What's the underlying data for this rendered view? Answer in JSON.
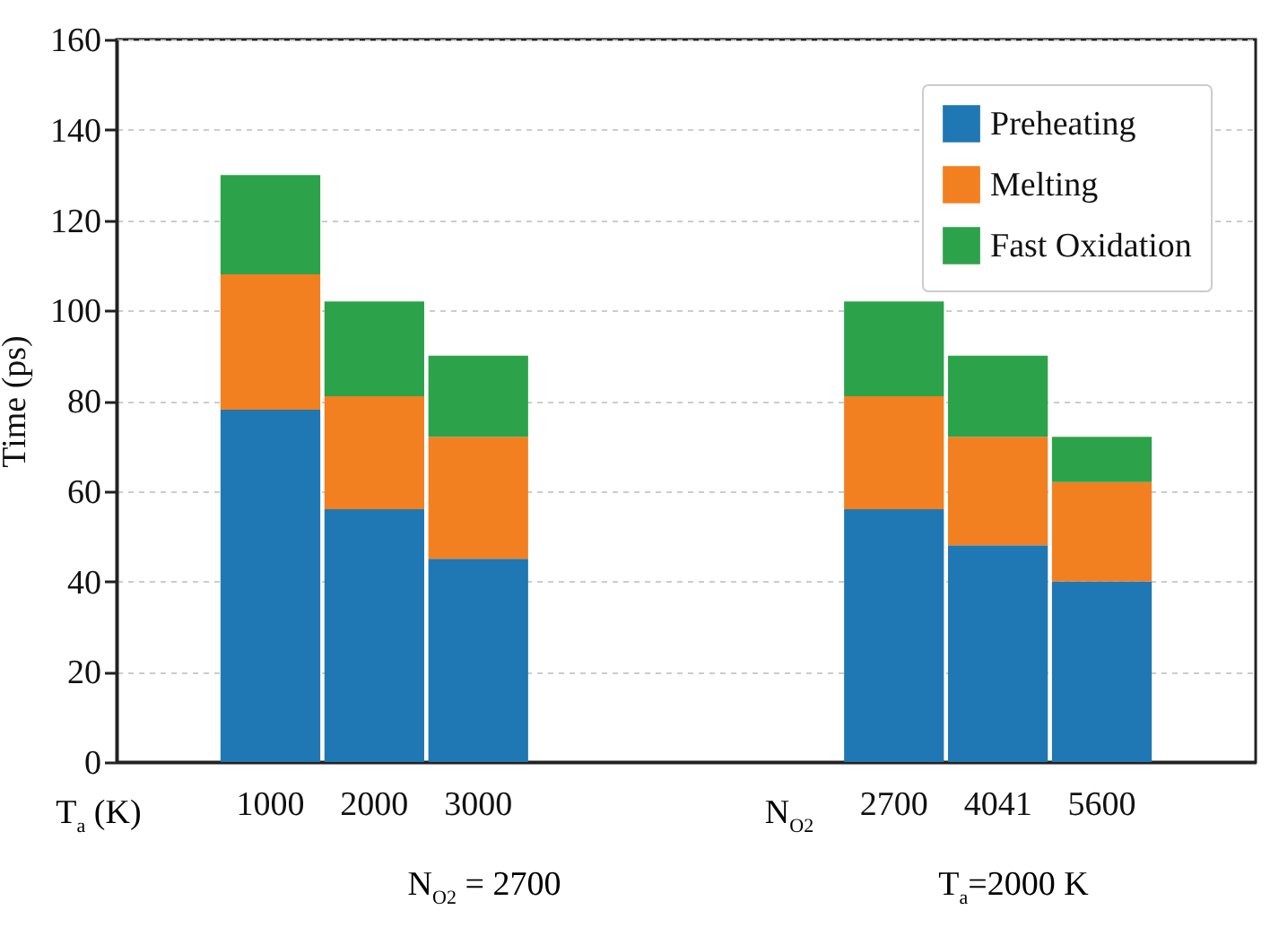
{
  "chart_data": {
    "type": "bar",
    "stacked": true,
    "ylabel": "Time (ps)",
    "categories": [
      "1000",
      "2000",
      "3000",
      null,
      null,
      null,
      "2700",
      "4041",
      "5600"
    ],
    "series": [
      {
        "name": "Preheating",
        "color": "#1f77b4",
        "values": [
          78,
          56,
          45,
          null,
          null,
          null,
          56,
          48,
          40
        ]
      },
      {
        "name": "Melting",
        "color": "#f28021",
        "values": [
          30,
          25,
          27,
          null,
          null,
          null,
          25,
          24,
          22
        ]
      },
      {
        "name": "Fast Oxidation",
        "color": "#2ca34a",
        "values": [
          22,
          21,
          18,
          null,
          null,
          null,
          21,
          18,
          10
        ]
      }
    ],
    "ylim": [
      0,
      160
    ],
    "yticks": [
      0,
      20,
      40,
      60,
      80,
      100,
      120,
      140,
      160
    ],
    "grid": "y",
    "legend": "top right",
    "annotations": [
      "T$_{a}$ (K)",
      "N$_{O2}$",
      "N$_{O2}$ = 2700",
      "T$_{a}$=2000 K"
    ]
  }
}
